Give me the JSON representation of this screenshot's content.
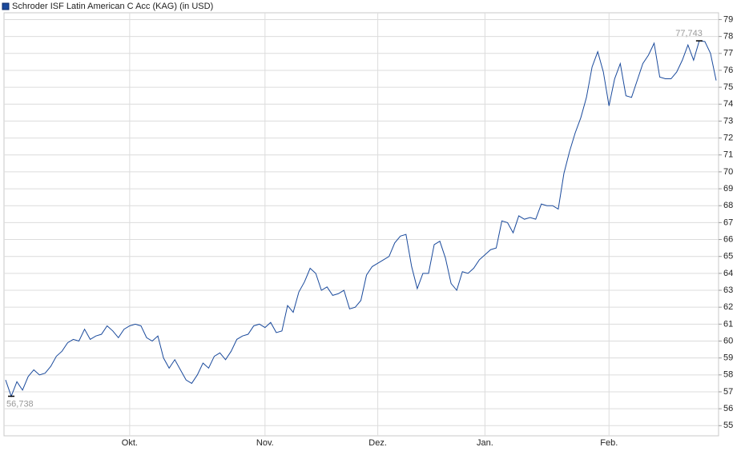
{
  "chart_data": {
    "type": "line",
    "title": "Schroder ISF Latin American C Acc (KAG) (in USD)",
    "categories": [
      null,
      null,
      null,
      null,
      null,
      null,
      null,
      null,
      null,
      null,
      null,
      null,
      null,
      null,
      null,
      null,
      null,
      null,
      null,
      null,
      null,
      null,
      "Okt.",
      null,
      null,
      null,
      null,
      null,
      null,
      null,
      null,
      null,
      null,
      null,
      null,
      null,
      null,
      null,
      null,
      null,
      null,
      null,
      null,
      null,
      null,
      null,
      "Nov.",
      null,
      null,
      null,
      null,
      null,
      null,
      null,
      null,
      null,
      null,
      null,
      null,
      null,
      null,
      null,
      null,
      null,
      null,
      null,
      "Dez.",
      null,
      null,
      null,
      null,
      null,
      null,
      null,
      null,
      null,
      null,
      null,
      null,
      null,
      null,
      null,
      null,
      null,
      null,
      "Jan.",
      null,
      null,
      null,
      null,
      null,
      null,
      null,
      null,
      null,
      null,
      null,
      null,
      null,
      null,
      null,
      null,
      null,
      null,
      null,
      null,
      null,
      "Feb.",
      null,
      null,
      null,
      null,
      null,
      null,
      null,
      null,
      null,
      null,
      null,
      null,
      null,
      null,
      null,
      null,
      null,
      null,
      null
    ],
    "series": [
      {
        "name": "Schroder ISF Latin American C Acc (KAG) (in USD)",
        "color": "#1a4a9c",
        "values": [
          57.7,
          56.738,
          57.6,
          57.1,
          57.9,
          58.3,
          58.0,
          58.1,
          58.5,
          59.1,
          59.4,
          59.9,
          60.1,
          60.0,
          60.7,
          60.1,
          60.3,
          60.4,
          60.9,
          60.6,
          60.2,
          60.7,
          60.9,
          61.0,
          60.9,
          60.2,
          60.0,
          60.3,
          59.0,
          58.4,
          58.9,
          58.3,
          57.7,
          57.5,
          58.0,
          58.7,
          58.4,
          59.1,
          59.3,
          58.9,
          59.4,
          60.1,
          60.3,
          60.4,
          60.9,
          61.0,
          60.8,
          61.1,
          60.5,
          60.6,
          62.1,
          61.7,
          62.9,
          63.5,
          64.3,
          64.0,
          63.0,
          63.2,
          62.7,
          62.8,
          63.0,
          61.9,
          62.0,
          62.4,
          63.9,
          64.4,
          64.6,
          64.8,
          65.0,
          65.8,
          66.2,
          66.3,
          64.4,
          63.1,
          64.0,
          64.0,
          65.7,
          65.9,
          64.9,
          63.4,
          63.0,
          64.1,
          64.0,
          64.3,
          64.8,
          65.1,
          65.4,
          65.5,
          67.1,
          67.0,
          66.4,
          67.4,
          67.2,
          67.3,
          67.2,
          68.1,
          68.0,
          68.0,
          67.8,
          69.9,
          71.2,
          72.3,
          73.2,
          74.4,
          76.2,
          77.1,
          75.9,
          73.9,
          75.5,
          76.4,
          74.5,
          74.4,
          75.4,
          76.4,
          76.9,
          77.6,
          75.6,
          75.5,
          75.5,
          75.9,
          76.6,
          77.5,
          76.6,
          77.743,
          77.7,
          77.0,
          75.4
        ],
        "value_labels": [
          null,
          "56,738",
          null,
          null,
          null,
          null,
          null,
          null,
          null,
          null,
          null,
          null,
          null,
          null,
          null,
          null,
          null,
          null,
          null,
          null,
          null,
          null,
          null,
          null,
          null,
          null,
          null,
          null,
          null,
          null,
          null,
          null,
          null,
          null,
          null,
          null,
          null,
          null,
          null,
          null,
          null,
          null,
          null,
          null,
          null,
          null,
          null,
          null,
          null,
          null,
          null,
          null,
          null,
          null,
          null,
          null,
          null,
          null,
          null,
          null,
          null,
          null,
          null,
          null,
          null,
          null,
          null,
          null,
          null,
          null,
          null,
          null,
          null,
          null,
          null,
          null,
          null,
          null,
          null,
          null,
          null,
          null,
          null,
          null,
          null,
          null,
          null,
          null,
          null,
          null,
          null,
          null,
          null,
          null,
          null,
          null,
          null,
          null,
          null,
          null,
          null,
          null,
          null,
          null,
          null,
          null,
          null,
          null,
          null,
          null,
          null,
          null,
          null,
          null,
          null,
          null,
          null,
          null,
          null,
          null,
          null,
          null,
          null,
          "77,743",
          null,
          null,
          null
        ]
      }
    ],
    "ylim": [
      54.4,
      79.4
    ],
    "yticks": [
      55,
      56,
      57,
      58,
      59,
      60,
      61,
      62,
      63,
      64,
      65,
      66,
      67,
      68,
      69,
      70,
      71,
      72,
      73,
      74,
      75,
      76,
      77,
      78,
      79
    ],
    "grid": true
  }
}
